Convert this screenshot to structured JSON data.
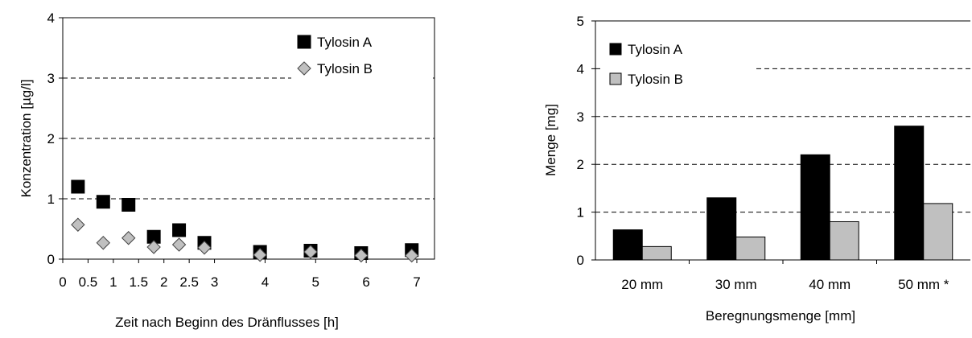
{
  "chart_data": [
    {
      "type": "scatter",
      "title": "",
      "xlabel": "Zeit nach Beginn des Dränflusses [h]",
      "ylabel": "Konzentration [µg/l]",
      "xlim": [
        0,
        7.35
      ],
      "ylim": [
        0,
        4
      ],
      "x_ticks": [
        "0",
        "0.5",
        "1",
        "1.5",
        "2",
        "2.5",
        "3",
        "4",
        "5",
        "6",
        "7"
      ],
      "y_ticks": [
        "0",
        "1",
        "2",
        "3",
        "4"
      ],
      "legend_position": "top-right",
      "grid": "horizontal dashed",
      "series": [
        {
          "name": "Tylosin A",
          "marker": "square",
          "color": "#000000",
          "points": [
            {
              "x": 0.3,
              "y": 1.2
            },
            {
              "x": 0.8,
              "y": 0.95
            },
            {
              "x": 1.3,
              "y": 0.9
            },
            {
              "x": 1.8,
              "y": 0.37
            },
            {
              "x": 2.3,
              "y": 0.48
            },
            {
              "x": 2.8,
              "y": 0.27
            },
            {
              "x": 3.9,
              "y": 0.12
            },
            {
              "x": 4.9,
              "y": 0.14
            },
            {
              "x": 5.9,
              "y": 0.1
            },
            {
              "x": 6.9,
              "y": 0.15
            }
          ]
        },
        {
          "name": "Tylosin B",
          "marker": "diamond",
          "color": "#c0c0c0",
          "points": [
            {
              "x": 0.3,
              "y": 0.57
            },
            {
              "x": 0.8,
              "y": 0.27
            },
            {
              "x": 1.3,
              "y": 0.35
            },
            {
              "x": 1.8,
              "y": 0.2
            },
            {
              "x": 2.3,
              "y": 0.24
            },
            {
              "x": 2.8,
              "y": 0.19
            },
            {
              "x": 3.9,
              "y": 0.07
            },
            {
              "x": 4.9,
              "y": 0.12
            },
            {
              "x": 5.9,
              "y": 0.06
            },
            {
              "x": 6.9,
              "y": 0.06
            }
          ]
        }
      ]
    },
    {
      "type": "bar",
      "title": "",
      "xlabel": "Beregnungsmenge [mm]",
      "ylabel": "Menge [mg]",
      "ylim": [
        0,
        5
      ],
      "y_ticks": [
        "0",
        "1",
        "2",
        "3",
        "4",
        "5"
      ],
      "categories": [
        "20 mm",
        "30 mm",
        "40 mm",
        "50 mm *"
      ],
      "legend_position": "top-left",
      "grid": "horizontal dashed",
      "series": [
        {
          "name": "Tylosin A",
          "color": "#000000",
          "values": [
            0.63,
            1.3,
            2.2,
            2.8
          ]
        },
        {
          "name": "Tylosin B",
          "color": "#c0c0c0",
          "values": [
            0.28,
            0.48,
            0.8,
            1.18
          ]
        }
      ]
    }
  ]
}
